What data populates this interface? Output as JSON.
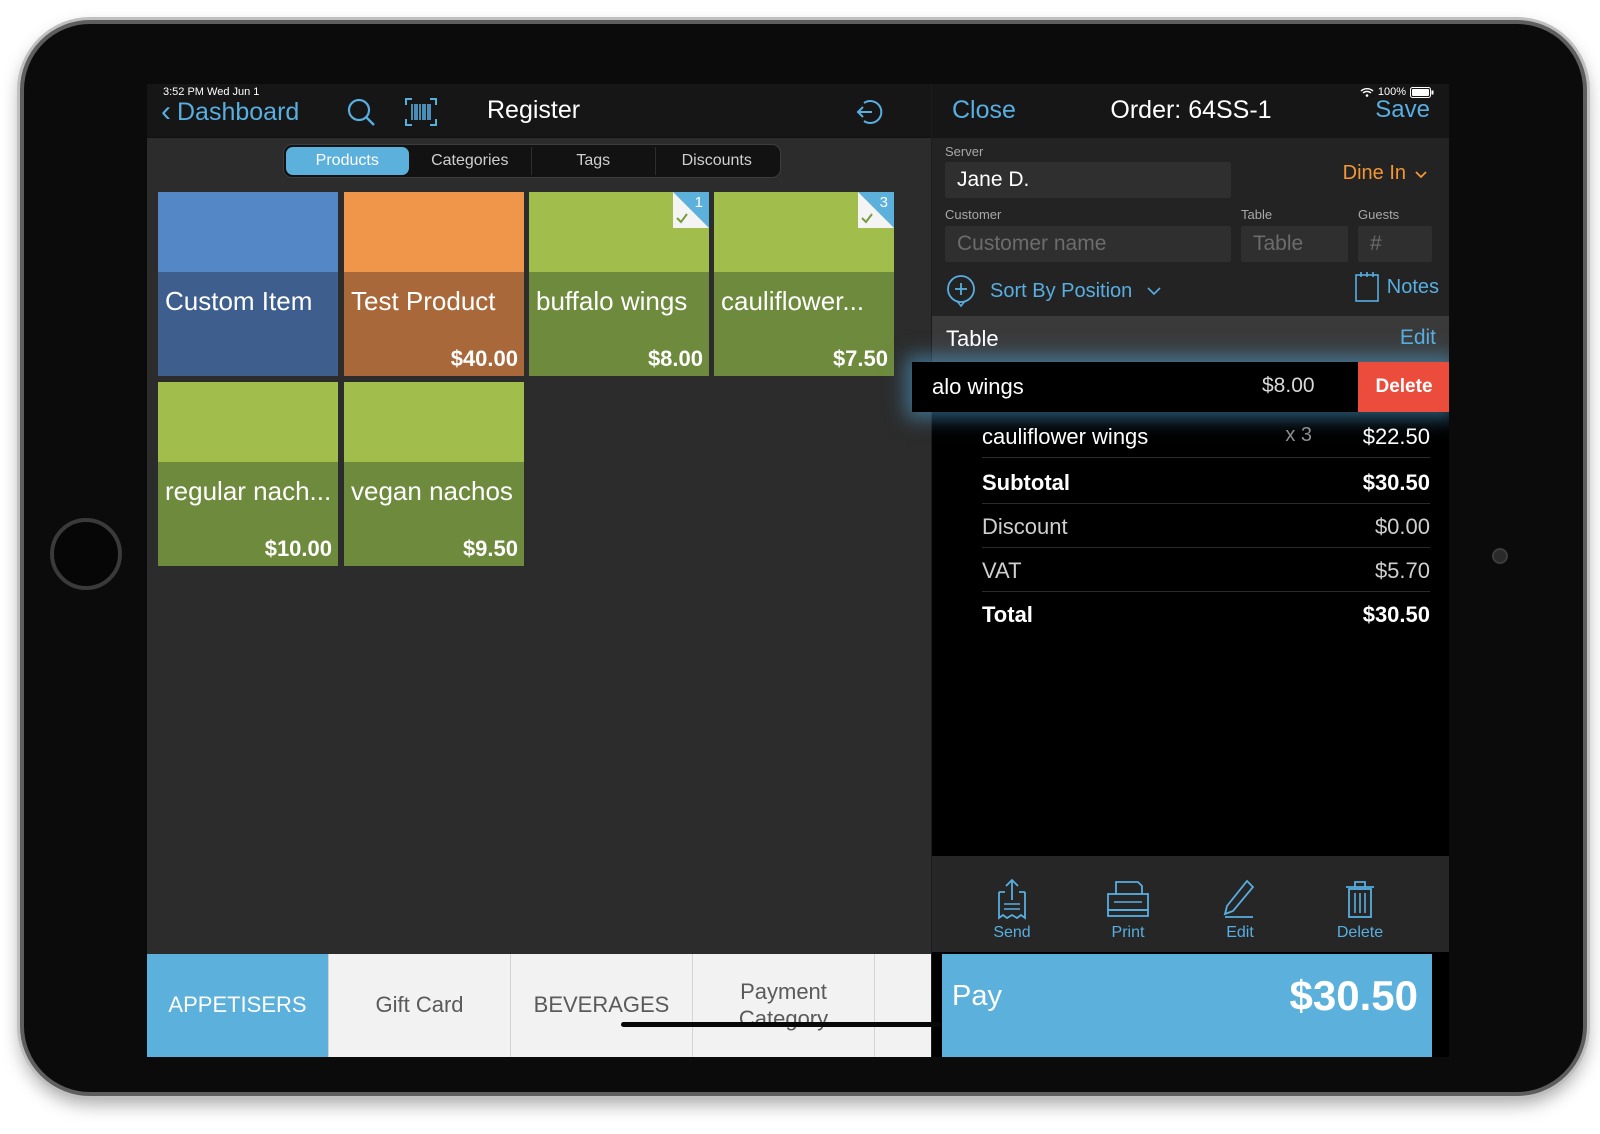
{
  "status": {
    "time": "3:52 PM  Wed Jun 1",
    "battery": "100%"
  },
  "left_nav": {
    "back_label": "Dashboard",
    "title": "Register"
  },
  "segments": [
    {
      "label": "Products",
      "active": true
    },
    {
      "label": "Categories",
      "active": false
    },
    {
      "label": "Tags",
      "active": false
    },
    {
      "label": "Discounts",
      "active": false
    }
  ],
  "products": [
    {
      "name": "Custom Item",
      "price": "",
      "top_color": "#5487c6",
      "bottom_color": "#3e5f8e",
      "badge": ""
    },
    {
      "name": "Test Product",
      "price": "$40.00",
      "top_color": "#f0964a",
      "bottom_color": "#a8683a",
      "badge": ""
    },
    {
      "name": "buffalo wings",
      "price": "$8.00",
      "top_color": "#a1bd4c",
      "bottom_color": "#6e8a3c",
      "badge": "1"
    },
    {
      "name": "cauliflower...",
      "price": "$7.50",
      "top_color": "#a1bd4c",
      "bottom_color": "#6e8a3c",
      "badge": "3"
    },
    {
      "name": "regular nach...",
      "price": "$10.00",
      "top_color": "#a1bd4c",
      "bottom_color": "#6e8a3c",
      "badge": ""
    },
    {
      "name": "vegan nachos",
      "price": "$9.50",
      "top_color": "#a1bd4c",
      "bottom_color": "#6e8a3c",
      "badge": ""
    }
  ],
  "categories": [
    {
      "label": "APPETISERS",
      "active": true
    },
    {
      "label": "Gift Card",
      "active": false
    },
    {
      "label": "BEVERAGES",
      "active": false
    },
    {
      "label": "Payment Category",
      "active": false
    }
  ],
  "order": {
    "close_label": "Close",
    "title": "Order: 64SS-1",
    "save_label": "Save",
    "server_label": "Server",
    "server_value": "Jane D.",
    "dine_mode": "Dine In",
    "customer_label": "Customer",
    "customer_placeholder": "Customer name",
    "table_label": "Table",
    "table_placeholder": "Table",
    "guests_label": "Guests",
    "guests_placeholder": "#",
    "sort_label": "Sort By Position",
    "notes_label": "Notes",
    "section_title": "Table",
    "section_edit": "Edit",
    "swiped_item": {
      "name": "alo wings",
      "price": "$8.00",
      "delete_label": "Delete"
    },
    "items": [
      {
        "name": "cauliflower wings",
        "qty": "x 3",
        "price": "$22.50"
      }
    ],
    "subtotal_label": "Subtotal",
    "subtotal": "$30.50",
    "discount_label": "Discount",
    "discount": "$0.00",
    "vat_label": "VAT",
    "vat": "$5.70",
    "total_label": "Total",
    "total": "$30.50"
  },
  "actions": [
    {
      "label": "Send",
      "icon": "send-receipt-icon"
    },
    {
      "label": "Print",
      "icon": "printer-icon"
    },
    {
      "label": "Edit",
      "icon": "pencil-icon"
    },
    {
      "label": "Delete",
      "icon": "trash-icon"
    }
  ],
  "pay": {
    "label": "Pay",
    "amount": "$30.50"
  },
  "colors": {
    "accent": "#5bb0dc",
    "orange": "#f49636",
    "delete": "#ec4c3c"
  }
}
